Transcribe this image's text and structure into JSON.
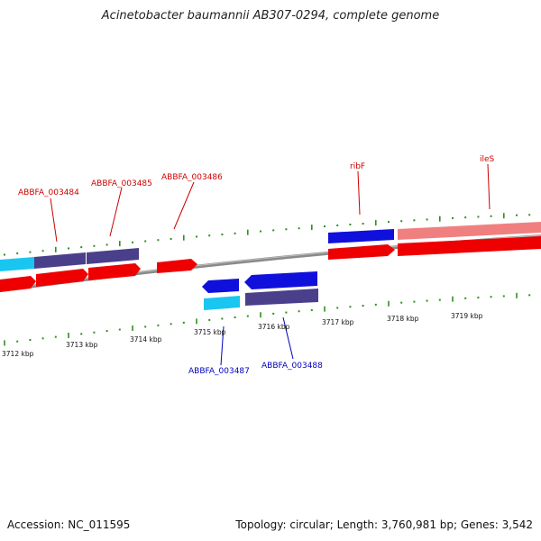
{
  "title": "Acinetobacter baumannii AB307-0294, complete genome",
  "footer": {
    "accession": "Accession: NC_011595",
    "summary": "Topology: circular; Length: 3,760,981 bp; Genes: 3,542"
  },
  "colors": {
    "forward_cds": "#ee0000",
    "reverse_cds": "#0000dd",
    "forward_label": "#cc0000",
    "reverse_label": "#0000bb",
    "tick": "#2f8f1f",
    "backbone": "#888888",
    "cyan_feature": "#19c6f0",
    "purple_feature": "#4a3f8a",
    "pink_feature": "#f08080"
  },
  "scale_labels": [
    "3712 kbp",
    "3713 kbp",
    "3714 kbp",
    "3715 kbp",
    "3716 kbp",
    "3717 kbp",
    "3718 kbp",
    "3719 kbp"
  ],
  "forward_labels": [
    "ABBFA_003484",
    "ABBFA_003485",
    "ABBFA_003486",
    "ribF",
    "ileS"
  ],
  "reverse_labels": [
    "ABBFA_003487",
    "ABBFA_003488"
  ]
}
